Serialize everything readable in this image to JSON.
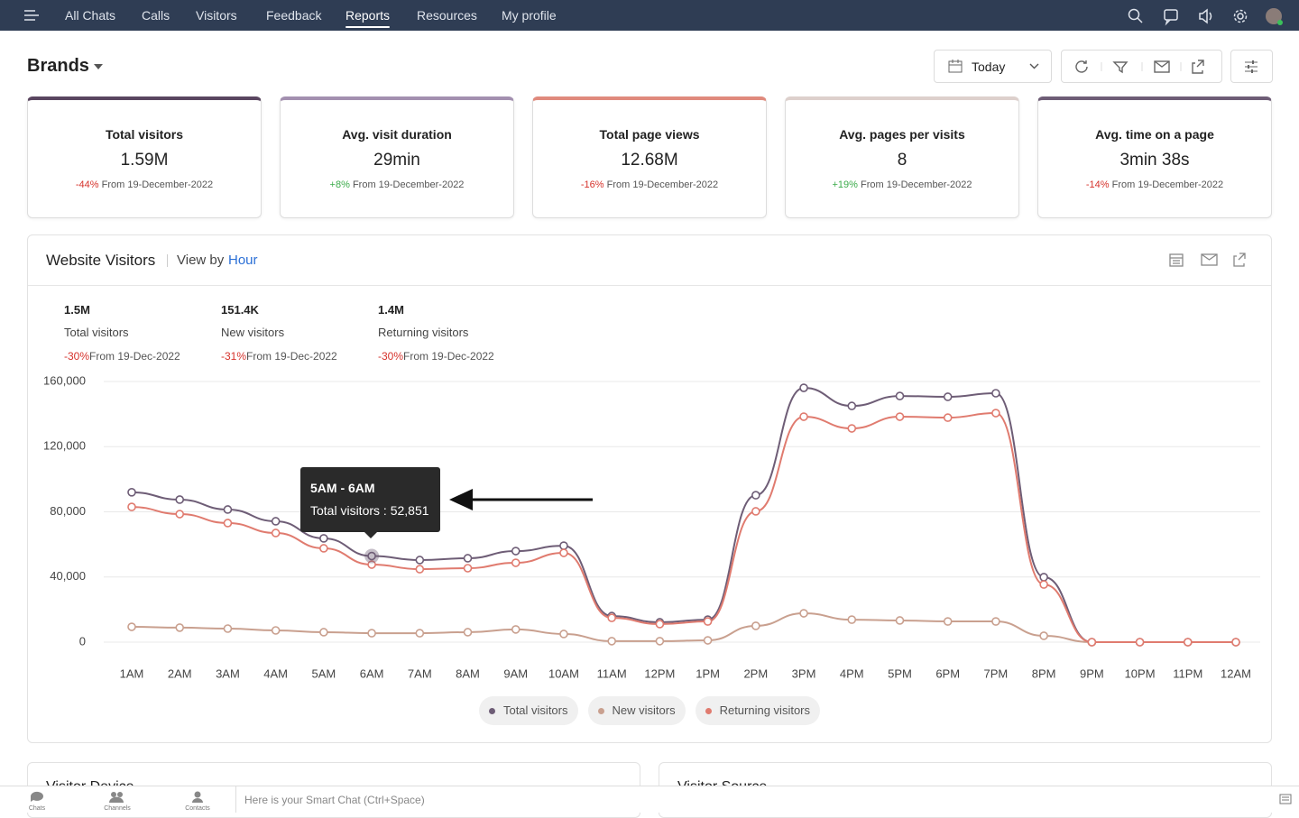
{
  "nav": {
    "items": [
      "All Chats",
      "Calls",
      "Visitors",
      "Feedback",
      "Reports",
      "Resources",
      "My profile"
    ]
  },
  "header": {
    "title": "Brands",
    "date_filter": "Today"
  },
  "cards": [
    {
      "title": "Total visitors",
      "value": "1.59M",
      "change": "-44%",
      "from": "From 19-December-2022"
    },
    {
      "title": "Avg. visit duration",
      "value": "29min",
      "change": "+8%",
      "from": "From 19-December-2022"
    },
    {
      "title": "Total page views",
      "value": "12.68M",
      "change": "-16%",
      "from": "From 19-December-2022"
    },
    {
      "title": "Avg. pages per visits",
      "value": "8",
      "change": "+19%",
      "from": "From 19-December-2022"
    },
    {
      "title": "Avg. time on a page",
      "value": "3min 38s",
      "change": "-14%",
      "from": "From 19-December-2022"
    }
  ],
  "panel": {
    "title": "Website Visitors",
    "view_by": "View by",
    "view_value": "Hour"
  },
  "summary": [
    {
      "value": "1.5M",
      "label": "Total visitors",
      "change": "-30%",
      "from": "From 19-Dec-2022"
    },
    {
      "value": "151.4K",
      "label": "New visitors",
      "change": "-31%",
      "from": "From 19-Dec-2022"
    },
    {
      "value": "1.4M",
      "label": "Returning visitors",
      "change": "-30%",
      "from": "From 19-Dec-2022"
    }
  ],
  "chart_data": {
    "type": "line",
    "categories": [
      "1AM",
      "2AM",
      "3AM",
      "4AM",
      "5AM",
      "6AM",
      "7AM",
      "8AM",
      "9AM",
      "10AM",
      "11AM",
      "12PM",
      "1PM",
      "2PM",
      "3PM",
      "4PM",
      "5PM",
      "6PM",
      "7PM",
      "8PM",
      "9PM",
      "10PM",
      "11PM",
      "12AM"
    ],
    "series": [
      {
        "name": "Total visitors",
        "color": "#6e5d76",
        "values": [
          92000,
          87500,
          81400,
          74200,
          63700,
          52851,
          50400,
          51500,
          55900,
          59200,
          16000,
          12200,
          13800,
          90200,
          156100,
          145000,
          151100,
          150600,
          152800,
          39900,
          0,
          0,
          0,
          0
        ]
      },
      {
        "name": "New visitors",
        "color": "#c9a08f",
        "values": [
          9400,
          8900,
          8300,
          7200,
          6100,
          5500,
          5500,
          6100,
          7800,
          5000,
          600,
          600,
          1100,
          10000,
          17700,
          13800,
          13300,
          12700,
          12700,
          3900,
          0,
          0,
          0,
          0
        ]
      },
      {
        "name": "Returning visitors",
        "color": "#e07b6f",
        "values": [
          83000,
          78600,
          73100,
          67000,
          57600,
          47600,
          44800,
          45400,
          48700,
          54800,
          14900,
          11100,
          12700,
          80300,
          138400,
          131200,
          138400,
          137800,
          140600,
          35400,
          0,
          0,
          0,
          0
        ]
      }
    ],
    "ylim": [
      0,
      160000
    ],
    "yticks": [
      0,
      {
        "value": 40000,
        "label": "40,000"
      },
      {
        "value": 80000,
        "label": "80,000"
      },
      {
        "value": 120000,
        "label": "120,000"
      },
      {
        "value": 160000,
        "label": "160,000"
      }
    ],
    "grid": true,
    "tooltip": {
      "title": "5AM - 6AM",
      "label": "Total visitors : 52,851"
    }
  },
  "bottom_panels": [
    "Visitor Device",
    "Visitor Source"
  ],
  "footer": {
    "tabs": [
      "Chats",
      "Channels",
      "Contacts"
    ],
    "placeholder": "Here is your Smart Chat (Ctrl+Space)"
  }
}
